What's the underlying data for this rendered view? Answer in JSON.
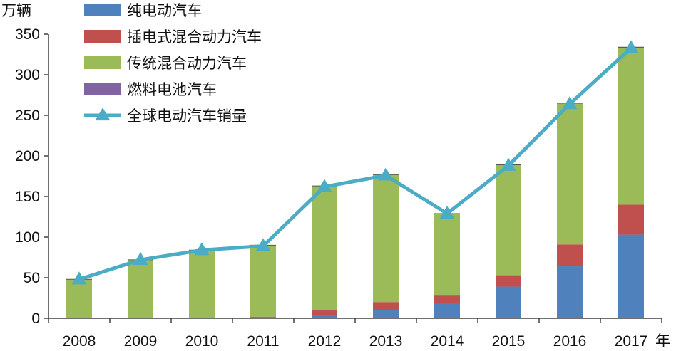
{
  "chart_data": {
    "type": "bar",
    "stacked": true,
    "categories": [
      "2008",
      "2009",
      "2010",
      "2011",
      "2012",
      "2013",
      "2014",
      "2015",
      "2016",
      "2017"
    ],
    "ylabel": "万辆",
    "xlabel": "年",
    "ylim": [
      0,
      350
    ],
    "yticks": [
      "0",
      "50",
      "100",
      "150",
      "200",
      "250",
      "300",
      "350"
    ],
    "grid": false,
    "legend_position": "top-left",
    "series": [
      {
        "name": "纯电动汽车",
        "type": "bar",
        "color": "#4F81BD",
        "values": [
          0,
          0,
          0,
          1,
          4,
          10,
          18,
          39,
          64,
          103
        ]
      },
      {
        "name": "插电式混合动力汽车",
        "type": "bar",
        "color": "#C0504D",
        "values": [
          0,
          0,
          0,
          1,
          6,
          10,
          10,
          14,
          27,
          37
        ]
      },
      {
        "name": "传统混合动力汽车",
        "type": "bar",
        "color": "#9BBB59",
        "values": [
          48,
          72,
          84,
          88,
          153,
          157,
          101,
          136,
          174,
          193
        ]
      },
      {
        "name": "燃料电池汽车",
        "type": "bar",
        "color": "#8064A2",
        "values": [
          0,
          0,
          0,
          0,
          0,
          0,
          0,
          0,
          0,
          1
        ]
      },
      {
        "name": "全球电动汽车销量",
        "type": "line",
        "color": "#4BACC6",
        "marker": "triangle",
        "values": [
          48,
          72,
          84,
          89,
          162,
          176,
          129,
          188,
          264,
          333
        ]
      }
    ]
  }
}
